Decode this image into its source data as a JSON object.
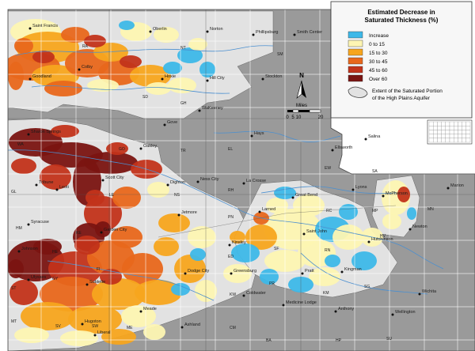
{
  "legend": {
    "title_line1": "Estimated Decrease in",
    "title_line2": "Saturated Thickness (%)",
    "classes": [
      {
        "label": "Increase",
        "color": "#3db8e8"
      },
      {
        "label": "0 to 15",
        "color": "#fdf5b2"
      },
      {
        "label": "15 to 30",
        "color": "#f7a51d"
      },
      {
        "label": "30 to 45",
        "color": "#e8671b"
      },
      {
        "label": "45 to 60",
        "color": "#c2331a"
      },
      {
        "label": "Over 60",
        "color": "#7a1411"
      }
    ],
    "extent_line1": "Extent of the Saturated Portion",
    "extent_line2": "of the High Plains Aquifer"
  },
  "north_arrow": {
    "label": "N"
  },
  "scale": {
    "title": "Miles",
    "ticks": [
      "0",
      "5",
      "10",
      "20"
    ]
  },
  "colors": {
    "county_fill": "#9a9a9a",
    "aquifer_fill": "#e2e2e2",
    "river": "#4a8fd0",
    "county_line": "#ffffff",
    "road": "#555555"
  },
  "cities": [
    {
      "name": "Saint Francis"
    },
    {
      "name": "Oberlin"
    },
    {
      "name": "Norton"
    },
    {
      "name": "Phillipsburg"
    },
    {
      "name": "Smith Center"
    },
    {
      "name": "Colby"
    },
    {
      "name": "Goodland"
    },
    {
      "name": "Hoxie"
    },
    {
      "name": "Hill City"
    },
    {
      "name": "Stockton"
    },
    {
      "name": "WaKeeney"
    },
    {
      "name": "Gove"
    },
    {
      "name": "Hays"
    },
    {
      "name": "Sharon Springs"
    },
    {
      "name": "Oakley"
    },
    {
      "name": "Tribune"
    },
    {
      "name": "Dighton"
    },
    {
      "name": "Ness City"
    },
    {
      "name": "La Crosse"
    },
    {
      "name": "Ellsworth"
    },
    {
      "name": "Salina"
    },
    {
      "name": "Great Bend"
    },
    {
      "name": "Lyons"
    },
    {
      "name": "McPherson"
    },
    {
      "name": "Marion"
    },
    {
      "name": "Syracuse"
    },
    {
      "name": "Garden City"
    },
    {
      "name": "Jetmore"
    },
    {
      "name": "Larned"
    },
    {
      "name": "Saint John"
    },
    {
      "name": "Hutchinson"
    },
    {
      "name": "Newton"
    },
    {
      "name": "Kinsley"
    },
    {
      "name": "Dodge City"
    },
    {
      "name": "Greensburg"
    },
    {
      "name": "Pratt"
    },
    {
      "name": "Kingman"
    },
    {
      "name": "Wichita"
    },
    {
      "name": "Sublette"
    },
    {
      "name": "Ulysses"
    },
    {
      "name": "Coldwater"
    },
    {
      "name": "Medicine Lodge"
    },
    {
      "name": "Anthony"
    },
    {
      "name": "Wellington"
    },
    {
      "name": "Hugoton"
    },
    {
      "name": "Liberal"
    },
    {
      "name": "Meade"
    },
    {
      "name": "Ashland"
    },
    {
      "name": "Johnson"
    },
    {
      "name": "Scott City"
    },
    {
      "name": "Leoti"
    }
  ],
  "counties": [
    {
      "code": "RA"
    },
    {
      "code": "NT"
    },
    {
      "code": "SM"
    },
    {
      "code": "SD"
    },
    {
      "code": "GH"
    },
    {
      "code": "WA"
    },
    {
      "code": "GO"
    },
    {
      "code": "TR"
    },
    {
      "code": "EL"
    },
    {
      "code": "GL"
    },
    {
      "code": "LE"
    },
    {
      "code": "NS"
    },
    {
      "code": "RH"
    },
    {
      "code": "EW"
    },
    {
      "code": "SA"
    },
    {
      "code": "RC"
    },
    {
      "code": "MP"
    },
    {
      "code": "MN"
    },
    {
      "code": "HM"
    },
    {
      "code": "KE"
    },
    {
      "code": "PN"
    },
    {
      "code": "ED"
    },
    {
      "code": "SF"
    },
    {
      "code": "RN"
    },
    {
      "code": "HV"
    },
    {
      "code": "HE"
    },
    {
      "code": "ST"
    },
    {
      "code": "KW"
    },
    {
      "code": "PR"
    },
    {
      "code": "KM"
    },
    {
      "code": "SG"
    },
    {
      "code": "MT"
    },
    {
      "code": "SV"
    },
    {
      "code": "SW"
    },
    {
      "code": "ME"
    },
    {
      "code": "CM"
    },
    {
      "code": "BA"
    },
    {
      "code": "HP"
    },
    {
      "code": "SU"
    },
    {
      "code": "GY"
    },
    {
      "code": "FI"
    }
  ]
}
